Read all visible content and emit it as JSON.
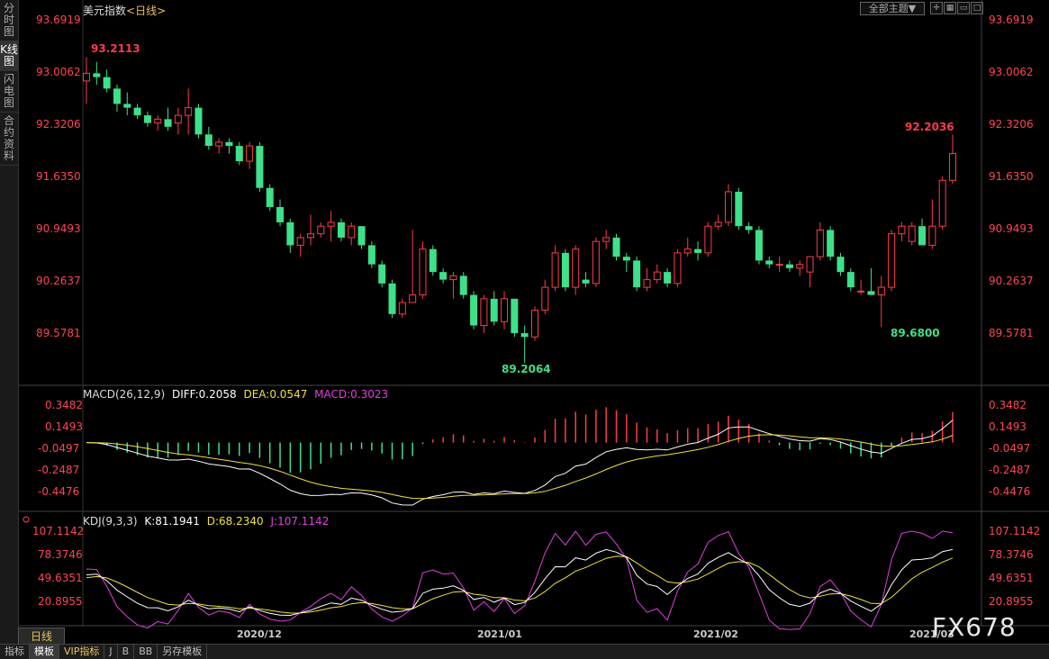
{
  "sidebar": {
    "tabs": [
      "分时图",
      "K线图",
      "闪电图",
      "合约资料"
    ]
  },
  "header": {
    "title": "美元指数",
    "subtitle": "<日线>",
    "theme_button": "全部主题▼"
  },
  "price_axis": [
    "93.6919",
    "93.0062",
    "92.3206",
    "91.6350",
    "90.9493",
    "90.2637",
    "89.5781"
  ],
  "annotations": {
    "high_left": "93.2113",
    "high_right": "92.2036",
    "low_left": "89.2064",
    "low_right": "89.6800"
  },
  "macd": {
    "label": "MACD(26,12,9)",
    "diff": "DIFF:0.2058",
    "dea": "DEA:0.0547",
    "macd": "MACD:0.3023",
    "axis": [
      "0.3482",
      "0.1493",
      "-0.0497",
      "-0.2487",
      "-0.4476"
    ]
  },
  "kdj": {
    "label": "KDJ(9,3,3)",
    "k": "K:81.1941",
    "d": "D:68.2340",
    "j": "J:107.1142",
    "axis": [
      "107.1142",
      "78.3746",
      "49.6351",
      "20.8955"
    ]
  },
  "date_axis": [
    "2020/12",
    "2021/01",
    "2021/02",
    "2021/03"
  ],
  "day_tab": "日线",
  "bottom_tabs": [
    "指标",
    "模板",
    "VIP指标",
    "J",
    "B",
    "BB",
    "另存模板"
  ],
  "watermark": "FX678",
  "colors": {
    "up": "#ff3b4a",
    "down": "#3ee08a",
    "diff": "#ffffff",
    "dea": "#f0e040",
    "j": "#e040e0"
  },
  "chart_data": {
    "type": "candlestick",
    "ylim": [
      89.2,
      93.7
    ],
    "ohlc": [
      [
        92.9,
        93.21,
        92.6,
        93.0
      ],
      [
        93.0,
        93.15,
        92.85,
        92.95
      ],
      [
        92.95,
        93.05,
        92.75,
        92.8
      ],
      [
        92.8,
        92.85,
        92.5,
        92.6
      ],
      [
        92.6,
        92.75,
        92.45,
        92.55
      ],
      [
        92.55,
        92.6,
        92.4,
        92.45
      ],
      [
        92.45,
        92.5,
        92.3,
        92.35
      ],
      [
        92.35,
        92.45,
        92.25,
        92.4
      ],
      [
        92.4,
        92.55,
        92.25,
        92.3
      ],
      [
        92.35,
        92.55,
        92.2,
        92.45
      ],
      [
        92.45,
        92.8,
        92.2,
        92.55
      ],
      [
        92.55,
        92.6,
        92.15,
        92.2
      ],
      [
        92.2,
        92.3,
        92.0,
        92.05
      ],
      [
        92.05,
        92.15,
        91.95,
        92.1
      ],
      [
        92.1,
        92.15,
        91.95,
        92.05
      ],
      [
        92.05,
        92.1,
        91.8,
        91.85
      ],
      [
        91.85,
        92.1,
        91.75,
        92.05
      ],
      [
        92.05,
        92.1,
        91.45,
        91.5
      ],
      [
        91.5,
        91.55,
        91.2,
        91.25
      ],
      [
        91.25,
        91.35,
        91.0,
        91.05
      ],
      [
        91.05,
        91.1,
        90.65,
        90.75
      ],
      [
        90.75,
        90.9,
        90.6,
        90.85
      ],
      [
        90.85,
        91.15,
        90.75,
        90.9
      ],
      [
        90.9,
        91.05,
        90.85,
        91.0
      ],
      [
        91.0,
        91.2,
        90.8,
        91.05
      ],
      [
        91.05,
        91.1,
        90.8,
        90.85
      ],
      [
        90.85,
        91.05,
        90.75,
        91.0
      ],
      [
        91.0,
        91.0,
        90.7,
        90.75
      ],
      [
        90.75,
        90.8,
        90.45,
        90.5
      ],
      [
        90.5,
        90.55,
        90.2,
        90.25
      ],
      [
        90.25,
        90.3,
        89.8,
        89.85
      ],
      [
        89.85,
        90.05,
        89.8,
        90.0
      ],
      [
        90.0,
        90.95,
        90.0,
        90.1
      ],
      [
        90.1,
        90.8,
        90.05,
        90.7
      ],
      [
        90.7,
        90.75,
        90.35,
        90.4
      ],
      [
        90.4,
        90.45,
        90.25,
        90.3
      ],
      [
        90.3,
        90.4,
        90.05,
        90.35
      ],
      [
        90.35,
        90.4,
        90.05,
        90.1
      ],
      [
        90.1,
        90.15,
        89.65,
        89.7
      ],
      [
        89.7,
        90.1,
        89.6,
        90.05
      ],
      [
        90.05,
        90.15,
        89.7,
        89.75
      ],
      [
        89.75,
        90.15,
        89.65,
        90.05
      ],
      [
        90.05,
        90.05,
        89.55,
        89.6
      ],
      [
        89.6,
        89.7,
        89.21,
        89.55
      ],
      [
        89.55,
        89.95,
        89.5,
        89.9
      ],
      [
        89.9,
        90.3,
        89.85,
        90.2
      ],
      [
        90.2,
        90.75,
        90.15,
        90.65
      ],
      [
        90.65,
        90.7,
        90.15,
        90.2
      ],
      [
        90.2,
        90.75,
        90.1,
        90.7
      ],
      [
        90.3,
        90.4,
        90.2,
        90.25
      ],
      [
        90.25,
        90.85,
        90.2,
        90.8
      ],
      [
        90.8,
        90.95,
        90.7,
        90.85
      ],
      [
        90.85,
        90.9,
        90.55,
        90.6
      ],
      [
        90.6,
        90.65,
        90.4,
        90.55
      ],
      [
        90.55,
        90.6,
        90.15,
        90.2
      ],
      [
        90.2,
        90.45,
        90.15,
        90.3
      ],
      [
        90.3,
        90.5,
        90.25,
        90.4
      ],
      [
        90.4,
        90.45,
        90.2,
        90.25
      ],
      [
        90.25,
        90.7,
        90.2,
        90.65
      ],
      [
        90.65,
        90.85,
        90.6,
        90.7
      ],
      [
        90.7,
        90.8,
        90.55,
        90.65
      ],
      [
        90.65,
        91.05,
        90.6,
        91.0
      ],
      [
        91.0,
        91.15,
        90.95,
        91.05
      ],
      [
        91.05,
        91.55,
        91.0,
        91.45
      ],
      [
        91.45,
        91.5,
        90.95,
        91.0
      ],
      [
        91.0,
        91.05,
        90.9,
        90.95
      ],
      [
        90.95,
        91.0,
        90.5,
        90.55
      ],
      [
        90.55,
        90.6,
        90.45,
        90.5
      ],
      [
        90.5,
        90.6,
        90.4,
        90.5
      ],
      [
        90.5,
        90.55,
        90.4,
        90.45
      ],
      [
        90.45,
        90.55,
        90.35,
        90.5
      ],
      [
        90.4,
        90.6,
        90.2,
        90.6
      ],
      [
        90.6,
        91.05,
        90.55,
        90.95
      ],
      [
        90.95,
        91.0,
        90.55,
        90.6
      ],
      [
        90.6,
        90.65,
        90.35,
        90.4
      ],
      [
        90.4,
        90.45,
        90.15,
        90.2
      ],
      [
        90.15,
        90.3,
        90.1,
        90.15
      ],
      [
        90.15,
        90.45,
        90.1,
        90.1
      ],
      [
        90.1,
        90.35,
        89.68,
        90.2
      ],
      [
        90.2,
        90.95,
        90.15,
        90.9
      ],
      [
        90.9,
        91.05,
        90.8,
        91.0
      ],
      [
        90.8,
        91.05,
        90.75,
        91.0
      ],
      [
        91.0,
        91.1,
        90.75,
        90.75
      ],
      [
        90.75,
        91.35,
        90.7,
        91.0
      ],
      [
        91.0,
        91.65,
        90.95,
        91.6
      ],
      [
        91.6,
        92.2,
        91.55,
        91.95
      ]
    ]
  }
}
